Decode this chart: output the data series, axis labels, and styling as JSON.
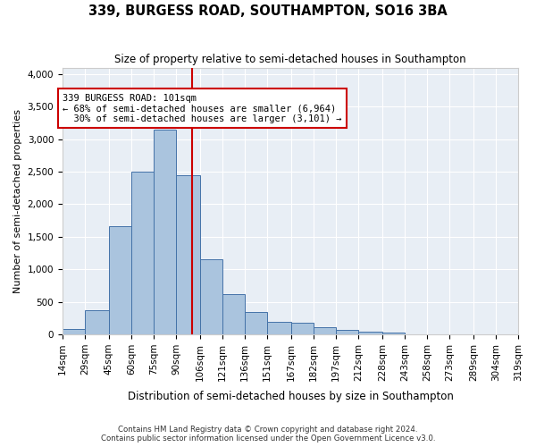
{
  "title": "339, BURGESS ROAD, SOUTHAMPTON, SO16 3BA",
  "subtitle": "Size of property relative to semi-detached houses in Southampton",
  "xlabel": "Distribution of semi-detached houses by size in Southampton",
  "ylabel": "Number of semi-detached properties",
  "footnote": "Contains HM Land Registry data © Crown copyright and database right 2024.\nContains public sector information licensed under the Open Government Licence v3.0.",
  "property_size": 101,
  "property_label": "339 BURGESS ROAD: 101sqm",
  "pct_smaller": 68,
  "pct_larger": 30,
  "n_smaller": 6964,
  "n_larger": 3101,
  "bin_edges": [
    14,
    29,
    45,
    60,
    75,
    90,
    106,
    121,
    136,
    151,
    167,
    182,
    197,
    212,
    228,
    243,
    258,
    273,
    289,
    304,
    319
  ],
  "bin_labels": [
    "14sqm",
    "29sqm",
    "45sqm",
    "60sqm",
    "75sqm",
    "90sqm",
    "106sqm",
    "121sqm",
    "136sqm",
    "151sqm",
    "167sqm",
    "182sqm",
    "197sqm",
    "212sqm",
    "228sqm",
    "243sqm",
    "258sqm",
    "273sqm",
    "289sqm",
    "304sqm",
    "319sqm"
  ],
  "counts": [
    80,
    370,
    1660,
    2500,
    3150,
    2450,
    1150,
    620,
    350,
    195,
    185,
    115,
    65,
    45,
    25,
    5,
    5,
    5,
    5,
    5
  ],
  "bar_color": "#aac4de",
  "bar_edge_color": "#4472a8",
  "vline_color": "#cc0000",
  "bg_color": "#e8eef5",
  "grid_color": "#ffffff",
  "annotation_box_color": "#cc0000",
  "ylim": [
    0,
    4100
  ],
  "yticks": [
    0,
    500,
    1000,
    1500,
    2000,
    2500,
    3000,
    3500,
    4000
  ]
}
